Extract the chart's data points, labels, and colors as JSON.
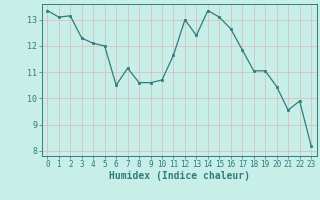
{
  "x": [
    0,
    1,
    2,
    3,
    4,
    5,
    6,
    7,
    8,
    9,
    10,
    11,
    12,
    13,
    14,
    15,
    16,
    17,
    18,
    19,
    20,
    21,
    22,
    23
  ],
  "y": [
    13.35,
    13.1,
    13.15,
    12.3,
    12.1,
    12.0,
    10.5,
    11.15,
    10.6,
    10.6,
    10.7,
    11.65,
    13.0,
    12.4,
    13.35,
    13.1,
    12.65,
    11.85,
    11.05,
    11.05,
    10.45,
    9.55,
    9.9,
    8.2
  ],
  "line_color": "#2e7d7d",
  "marker_color": "#2e7d7d",
  "bg_color": "#c8eee8",
  "grid_color": "#d8b8b8",
  "xlabel": "Humidex (Indice chaleur)",
  "xlim": [
    -0.5,
    23.5
  ],
  "ylim": [
    7.8,
    13.6
  ],
  "yticks": [
    8,
    9,
    10,
    11,
    12,
    13
  ],
  "xticks": [
    0,
    1,
    2,
    3,
    4,
    5,
    6,
    7,
    8,
    9,
    10,
    11,
    12,
    13,
    14,
    15,
    16,
    17,
    18,
    19,
    20,
    21,
    22,
    23
  ]
}
